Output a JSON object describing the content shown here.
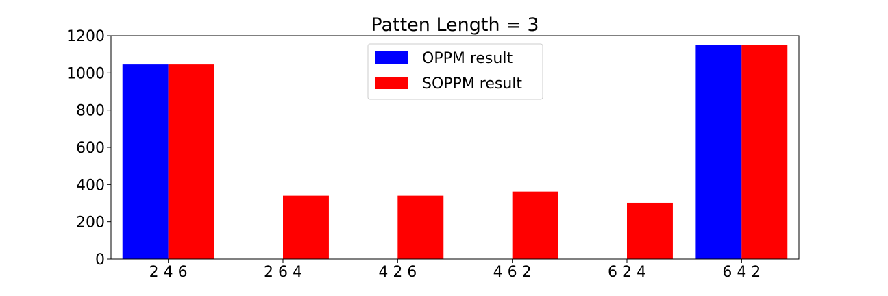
{
  "chart_data": {
    "type": "bar",
    "title": "Patten Length = 3",
    "xlabel": "",
    "ylabel": "",
    "categories": [
      "2 4 6",
      "2 6 4",
      "4 2 6",
      "4 6 2",
      "6 2 4",
      "6 4 2"
    ],
    "series": [
      {
        "name": "OPPM result",
        "color": "#0000ff",
        "values": [
          1045,
          0,
          0,
          0,
          0,
          1152
        ]
      },
      {
        "name": "SOPPM result",
        "color": "#ff0000",
        "values": [
          1045,
          340,
          340,
          362,
          302,
          1152
        ]
      }
    ],
    "ylim": [
      0,
      1200
    ],
    "yticks": [
      0,
      200,
      400,
      600,
      800,
      1000,
      1200
    ],
    "grid": false,
    "legend": "upper-center"
  }
}
